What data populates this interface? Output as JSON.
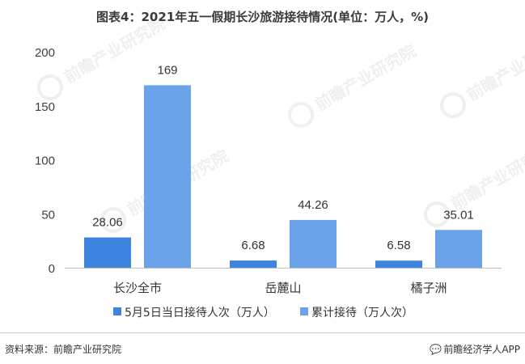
{
  "title": "图表4：2021年五一假期长沙旅游接待情况(单位：万人，%)",
  "footer": {
    "source": "资料来源：前瞻产业研究院",
    "brand": "前瞻经济学人APP",
    "brand_icon": "speech-bubble-icon"
  },
  "watermark": "前瞻产业研究院",
  "chart_data": {
    "type": "bar",
    "categories": [
      "长沙全市",
      "岳麓山",
      "橘子洲"
    ],
    "series": [
      {
        "name": "5月5日当日接待人次（万人）",
        "values": [
          28.06,
          6.68,
          6.58
        ],
        "labels": [
          "28.06",
          "6.68",
          "6.58"
        ],
        "color": "#3d84e0"
      },
      {
        "name": "累计接待（万人次）",
        "values": [
          169,
          44.26,
          35.01
        ],
        "labels": [
          "169",
          "44.26",
          "35.01"
        ],
        "color": "#6aa3ea"
      }
    ],
    "ylim": [
      0,
      200
    ],
    "yticks": [
      0,
      50,
      100,
      150,
      200
    ],
    "grid": false,
    "legend": "bottom"
  }
}
